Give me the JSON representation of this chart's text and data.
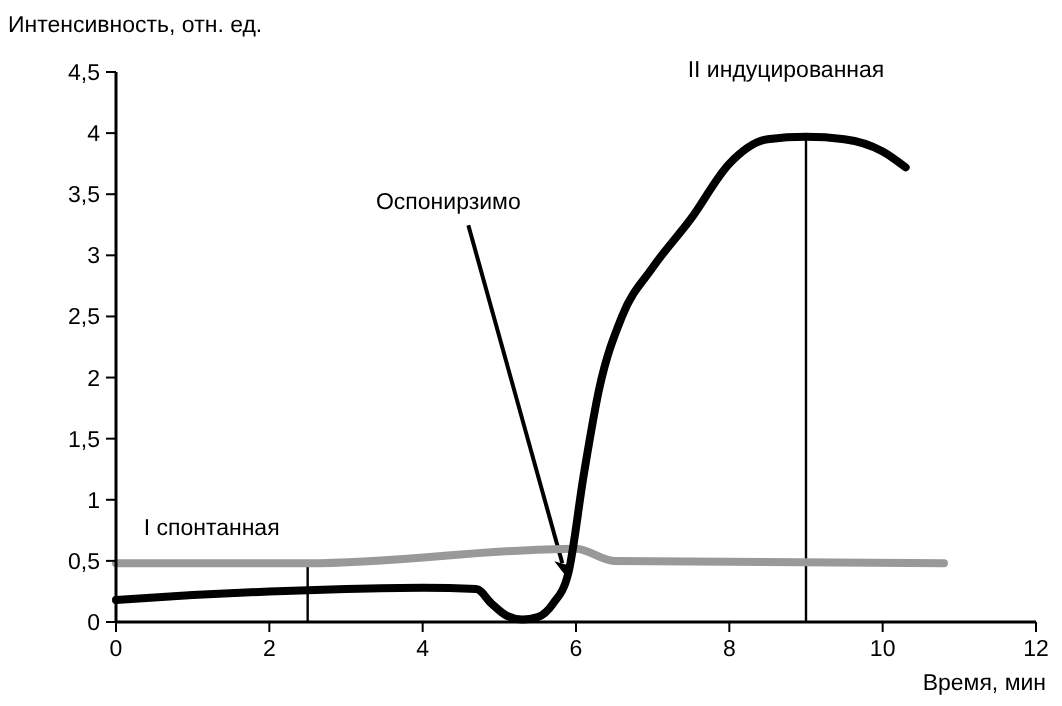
{
  "chart_data": {
    "type": "line",
    "xlabel": "Время, мин",
    "ylabel": "Интенсивность, отн. ед.",
    "xlim": [
      0,
      12
    ],
    "xticks": [
      0,
      2,
      4,
      6,
      8,
      10,
      12
    ],
    "ylim": [
      0,
      4.5
    ],
    "yticks": [
      0,
      {
        "value": 0.5,
        "label": "0,5"
      },
      1,
      {
        "value": 1.5,
        "label": "1,5"
      },
      2,
      {
        "value": 2.5,
        "label": "2,5"
      },
      3,
      {
        "value": 3.5,
        "label": "3,5"
      },
      4,
      {
        "value": 4.5,
        "label": "4,5"
      }
    ],
    "grid": false,
    "marker": "none",
    "line_style": "solid",
    "series": [
      {
        "color": "#999999",
        "x": [
          0,
          2.5,
          6,
          6.5,
          10.8
        ],
        "values": [
          0.48,
          0.48,
          0.6,
          0.5,
          0.48
        ]
      },
      {
        "color": "#000000",
        "x": [
          0,
          1,
          2,
          3,
          4,
          4.7,
          4.9,
          5.1,
          5.3,
          5.5,
          5.7,
          5.9,
          6.1,
          6.3,
          6.6,
          7,
          7.5,
          8,
          8.5,
          9,
          9.5,
          10,
          10.3
        ],
        "values": [
          0.18,
          0.22,
          0.25,
          0.27,
          0.28,
          0.27,
          0.15,
          0.05,
          0.02,
          0.04,
          0.15,
          0.4,
          1.2,
          1.9,
          2.5,
          2.9,
          3.3,
          3.75,
          3.95,
          3.97,
          3.95,
          3.85,
          3.72
        ]
      }
    ],
    "annotations": [
      {
        "text": "I спонтанная",
        "x": 2.5,
        "y": 0.48
      },
      {
        "text": "Оспонирзимо",
        "x": 5.9,
        "y": 0.35
      }
    ],
    "ref_lines": [
      {
        "axis": "x",
        "value": 9,
        "label": "II индуцированная"
      }
    ]
  }
}
